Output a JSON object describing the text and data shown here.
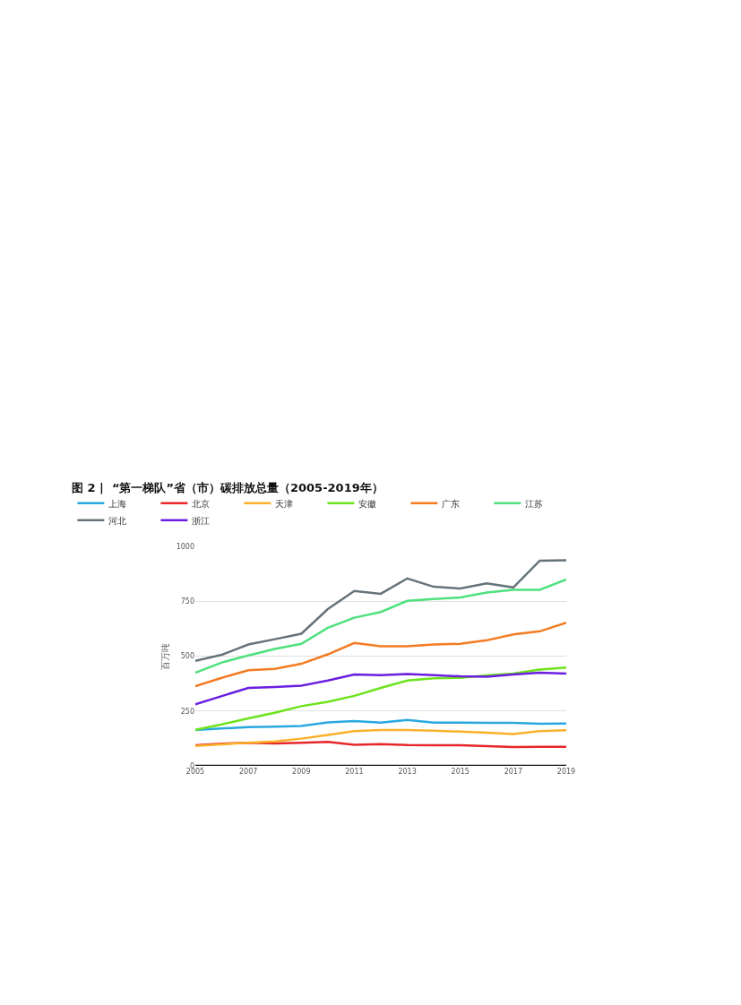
{
  "chart_data": {
    "type": "line",
    "title": "图 2 |  “第一梯队”省（市）碳排放总量（2005-2019年）",
    "ylabel": "百万吨",
    "x": [
      2005,
      2006,
      2007,
      2008,
      2009,
      2010,
      2011,
      2012,
      2013,
      2014,
      2015,
      2016,
      2017,
      2018,
      2019
    ],
    "xlim": [
      2005,
      2019
    ],
    "xticks": [
      2005,
      2007,
      2009,
      2011,
      2013,
      2015,
      2017,
      2019
    ],
    "ylim": [
      0,
      1000
    ],
    "yticks": [
      0,
      250,
      500,
      750,
      1000
    ],
    "grid": "y",
    "legend": "top",
    "marker": "none",
    "line_style": "solid",
    "series": [
      {
        "name": "上海",
        "color": "#29a8e0",
        "values": [
          163,
          170,
          177,
          179,
          182,
          198,
          204,
          197,
          209,
          197,
          197,
          196,
          196,
          192,
          193
        ]
      },
      {
        "name": "北京",
        "color": "#e8262a",
        "values": [
          94,
          101,
          105,
          102,
          105,
          109,
          96,
          99,
          95,
          94,
          94,
          90,
          86,
          87,
          87
        ]
      },
      {
        "name": "天津",
        "color": "#f9b12a",
        "values": [
          91,
          98,
          105,
          111,
          124,
          141,
          158,
          163,
          163,
          160,
          156,
          151,
          145,
          158,
          162
        ]
      },
      {
        "name": "安徽",
        "color": "#6ce31a",
        "values": [
          164,
          189,
          216,
          242,
          272,
          292,
          319,
          355,
          389,
          399,
          401,
          412,
          420,
          439,
          448
        ]
      },
      {
        "name": "广东",
        "color": "#f47b20",
        "values": [
          363,
          401,
          436,
          442,
          465,
          508,
          560,
          545,
          545,
          553,
          556,
          572,
          599,
          613,
          652
        ]
      },
      {
        "name": "江苏",
        "color": "#4ee07e",
        "values": [
          424,
          471,
          503,
          533,
          556,
          629,
          675,
          701,
          752,
          760,
          767,
          790,
          802,
          802,
          849
        ]
      },
      {
        "name": "河北",
        "color": "#66737a",
        "values": [
          478,
          506,
          553,
          577,
          602,
          714,
          797,
          784,
          854,
          816,
          808,
          832,
          813,
          935,
          937
        ]
      },
      {
        "name": "浙江",
        "color": "#6a1fe0",
        "values": [
          280,
          318,
          355,
          359,
          365,
          389,
          416,
          413,
          418,
          413,
          408,
          406,
          416,
          424,
          420
        ]
      }
    ]
  }
}
